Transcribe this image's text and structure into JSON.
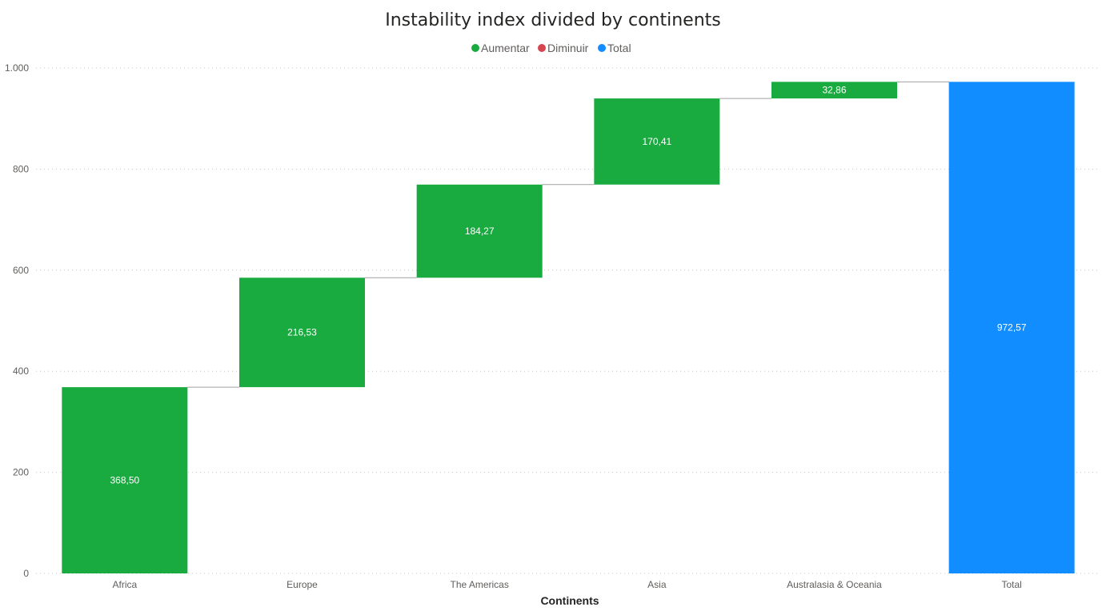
{
  "chart_data": {
    "type": "bar",
    "subtype": "waterfall",
    "title": "Instability index divided by continents",
    "xlabel": "Continents",
    "ylabel": "",
    "ylim": [
      0,
      1000
    ],
    "yticks": [
      0,
      200,
      400,
      600,
      800,
      1000
    ],
    "ytick_labels": [
      "0",
      "200",
      "400",
      "600",
      "800",
      "1.000"
    ],
    "grid": true,
    "legend_position": "top-center",
    "legend": [
      {
        "label": "Aumentar",
        "color": "#1AAB40"
      },
      {
        "label": "Diminuir",
        "color": "#D64550"
      },
      {
        "label": "Total",
        "color": "#118DFF"
      }
    ],
    "categories": [
      "Africa",
      "Europe",
      "The Americas",
      "Asia",
      "Australasia & Oceania",
      "Total"
    ],
    "values": [
      368.5,
      216.53,
      184.27,
      170.41,
      32.86,
      972.57
    ],
    "kinds": [
      "increase",
      "increase",
      "increase",
      "increase",
      "increase",
      "total"
    ],
    "value_labels": [
      "368,50",
      "216,53",
      "184,27",
      "170,41",
      "32,86",
      "972,57"
    ]
  }
}
